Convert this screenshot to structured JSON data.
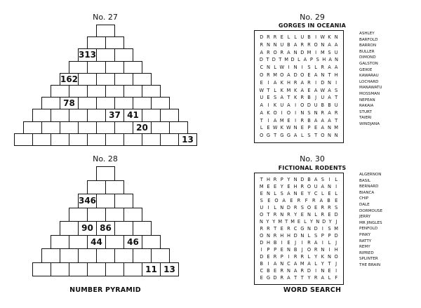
{
  "puzzles": {
    "p27": {
      "title": "No. 27",
      "rows": [
        [
          ""
        ],
        [
          "",
          ""
        ],
        [
          "313",
          "",
          ""
        ],
        [
          "",
          "",
          "",
          ""
        ],
        [
          "162",
          "",
          "",
          "",
          ""
        ],
        [
          "",
          "",
          "",
          "",
          "",
          ""
        ],
        [
          "",
          "78",
          "",
          "",
          "",
          "",
          ""
        ],
        [
          "",
          "",
          "",
          "",
          "37",
          "41",
          "",
          ""
        ],
        [
          "",
          "",
          "",
          "",
          "",
          "",
          "20",
          "",
          ""
        ],
        [
          "",
          "",
          "",
          "",
          "",
          "",
          "",
          "",
          "",
          "13"
        ]
      ]
    },
    "p28": {
      "title": "No. 28",
      "rows": [
        [
          ""
        ],
        [
          "",
          ""
        ],
        [
          "346",
          "",
          ""
        ],
        [
          "",
          "",
          "",
          ""
        ],
        [
          "",
          "90",
          "86",
          "",
          ""
        ],
        [
          "",
          "",
          "44",
          "",
          "46",
          ""
        ],
        [
          "",
          "",
          "",
          "",
          "",
          "",
          ""
        ],
        [
          "",
          "",
          "",
          "",
          "",
          "",
          "11",
          "13"
        ]
      ]
    },
    "p29": {
      "title": "No. 29",
      "subtitle": "GORGES IN OCEANIA",
      "grid": [
        "DRRELLUBIWKN",
        "RNNUBARRONAA",
        "ARORANDMIMSU",
        "DTDTMDLAPSHAN",
        "CNLWINISLRAA",
        "ORMOADOEANTH",
        "EIAKHRARIDNI",
        "WTLKMKAEAWAS",
        "UESATKRBJUAT",
        "AIKUAIODUBBU",
        "AKOIOINSNRAR",
        "TIAMEIRBAAAT",
        "LEWKWNEPEANM",
        "OGTGGALSTONN"
      ],
      "words": [
        "ASHLEY",
        "BARFOLD",
        "BARRON",
        "BULLER",
        "DIMOND",
        "GALSTON",
        "GEIKIE",
        "KAWARAU",
        "LOCHARD",
        "MANAWATU",
        "MOSSMAN",
        "NEPEAN",
        "RAKAIA",
        "STURT",
        "TAIERI",
        "WINDJANA"
      ]
    },
    "p30": {
      "title": "No. 30",
      "subtitle": "FICTIONAL RODENTS",
      "grid": [
        "THRPYNDBASIL",
        "MEEYEHROUANI",
        "ENLSANEYCLEL",
        "SEOAERFRABE",
        "UILNDRSOERRS",
        "OTRNRYENLRED",
        "NYYMTMELYNDYJ",
        "RRTERCGNDISM",
        "ONRHHDNLSPPD",
        "DHBIEJIRAILJ",
        "IPPENBJORNIH",
        "DERPIRRLYKNO",
        "BIANCAMALYTJ",
        "CBERNARDINEI",
        "EGDRATTYRALF"
      ],
      "words": [
        "ALGERNON",
        "BASIL",
        "BERNARD",
        "BIANCA",
        "CHIP",
        "DALE",
        "DORMOUSE",
        "JERRY",
        "MR JINGLES",
        "PENFOLD",
        "PINKY",
        "RATTY",
        "REMY",
        "RIPRED",
        "SPLINTER",
        "THE BRAIN"
      ]
    }
  },
  "footer": {
    "left": "NUMBER PYRAMID",
    "right": "WORD SEARCH"
  }
}
